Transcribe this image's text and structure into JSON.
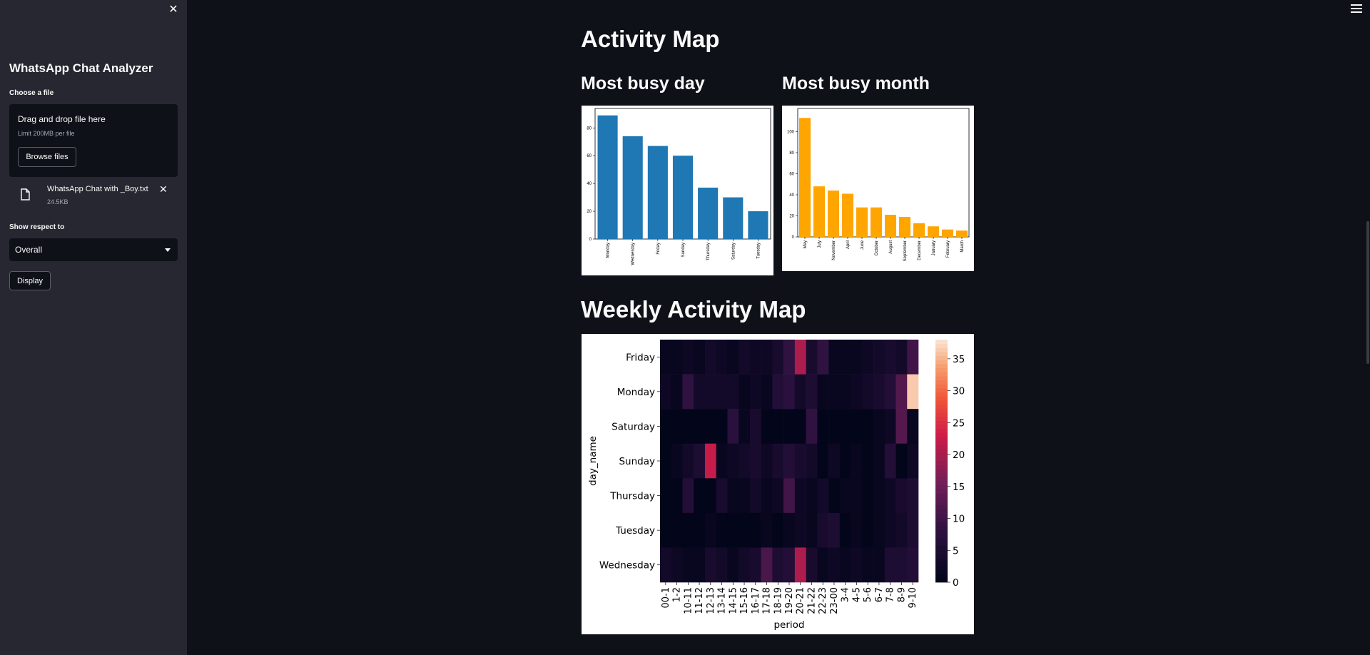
{
  "sidebar": {
    "app_title": "WhatsApp Chat Analyzer",
    "file_label": "Choose a file",
    "dropzone": {
      "title": "Drag and drop file here",
      "limit": "Limit 200MB per file",
      "browse_label": "Browse files"
    },
    "uploaded_file": {
      "name": "WhatsApp Chat with _Boy.txt",
      "size": "24.5KB"
    },
    "respect_label": "Show respect to",
    "select_value": "Overall",
    "display_label": "Display"
  },
  "main": {
    "activity_title": "Activity Map",
    "busy_day_title": "Most busy day",
    "busy_month_title": "Most busy month",
    "weekly_title": "Weekly Activity Map"
  },
  "colors": {
    "day_bar": "#1f77b4",
    "month_bar": "#ffa500"
  },
  "chart_data": [
    {
      "type": "bar",
      "categories": [
        "Monday",
        "Wednesday",
        "Friday",
        "Sunday",
        "Thursday",
        "Saturday",
        "Tuesday"
      ],
      "values": [
        89,
        74,
        67,
        60,
        37,
        30,
        20
      ],
      "ylim": [
        0,
        94
      ],
      "yticks": [
        0,
        20,
        40,
        60,
        80
      ]
    },
    {
      "type": "bar",
      "categories": [
        "May",
        "July",
        "November",
        "April",
        "June",
        "October",
        "August",
        "September",
        "December",
        "January",
        "February",
        "March"
      ],
      "values": [
        113,
        48,
        44,
        41,
        28,
        28,
        21,
        19,
        13,
        10,
        7,
        6
      ],
      "ylim": [
        0,
        122
      ],
      "yticks": [
        0,
        20,
        40,
        60,
        80,
        100
      ]
    },
    {
      "type": "heatmap",
      "xlabel": "period",
      "ylabel": "day_name",
      "x": [
        "00-1",
        "1-2",
        "10-11",
        "11-12",
        "12-13",
        "13-14",
        "14-15",
        "15-16",
        "16-17",
        "17-18",
        "18-19",
        "19-20",
        "20-21",
        "21-22",
        "22-23",
        "23-00",
        "3-4",
        "4-5",
        "5-6",
        "6-7",
        "7-8",
        "8-9",
        "9-10"
      ],
      "y": [
        "Friday",
        "Monday",
        "Saturday",
        "Sunday",
        "Thursday",
        "Tuesday",
        "Wednesday"
      ],
      "values": [
        [
          1,
          1,
          2,
          1,
          3,
          2,
          1,
          3,
          2,
          2,
          4,
          8,
          20,
          4,
          8,
          1,
          1,
          1,
          2,
          3,
          4,
          3,
          10
        ],
        [
          2,
          1,
          8,
          3,
          3,
          3,
          3,
          1,
          2,
          1,
          6,
          7,
          3,
          5,
          1,
          1,
          1,
          2,
          3,
          4,
          6,
          12,
          36
        ],
        [
          0,
          0,
          0,
          0,
          0,
          0,
          7,
          1,
          4,
          0,
          0,
          0,
          0,
          8,
          0,
          0,
          0,
          0,
          0,
          1,
          2,
          12,
          1
        ],
        [
          0,
          1,
          3,
          5,
          22,
          1,
          2,
          3,
          4,
          2,
          4,
          6,
          4,
          3,
          0,
          2,
          0,
          1,
          0,
          1,
          6,
          0,
          2
        ],
        [
          0,
          0,
          6,
          0,
          0,
          4,
          1,
          1,
          3,
          1,
          2,
          10,
          2,
          1,
          3,
          0,
          1,
          1,
          0,
          1,
          2,
          4,
          5
        ],
        [
          0,
          0,
          0,
          0,
          1,
          0,
          0,
          0,
          0,
          1,
          0,
          1,
          2,
          1,
          4,
          5,
          0,
          1,
          0,
          1,
          2,
          3,
          5
        ],
        [
          3,
          2,
          1,
          1,
          4,
          3,
          1,
          3,
          4,
          11,
          5,
          6,
          20,
          4,
          1,
          2,
          1,
          2,
          1,
          1,
          5,
          5,
          6
        ]
      ],
      "colorbar": {
        "min": 0,
        "max": 38,
        "ticks": [
          0,
          5,
          10,
          15,
          20,
          25,
          30,
          35
        ]
      }
    }
  ]
}
